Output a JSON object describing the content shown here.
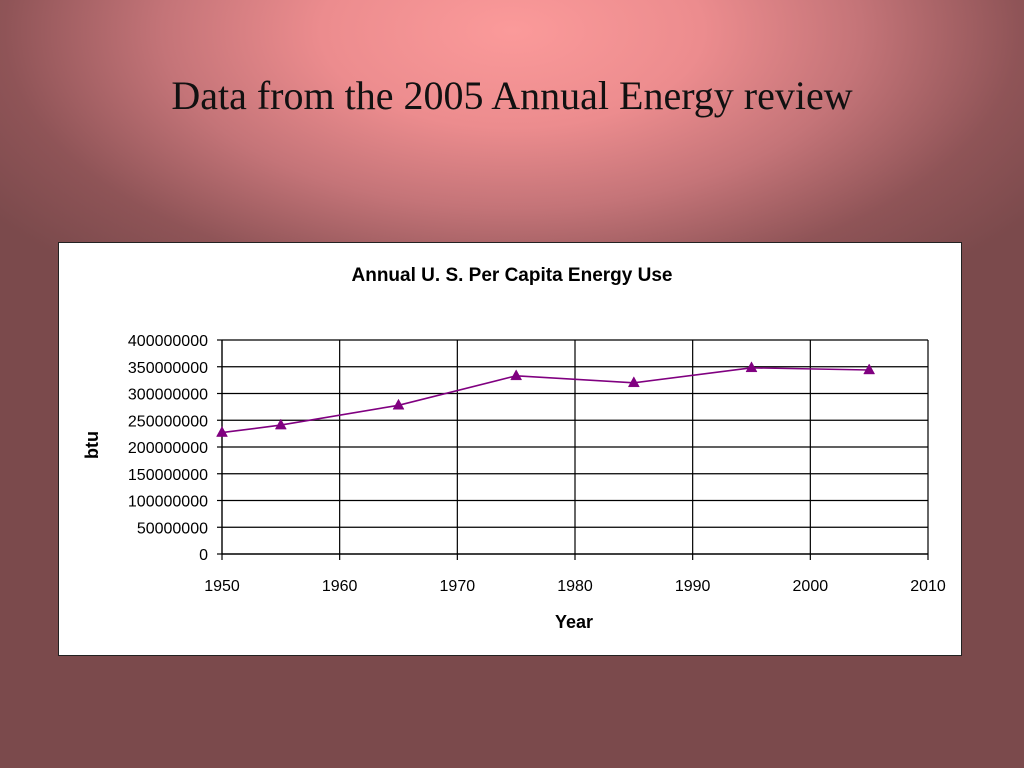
{
  "slide": {
    "title": "Data from the 2005 Annual Energy review"
  },
  "colors": {
    "series": "#800080",
    "grid": "#000000"
  },
  "chart_data": {
    "type": "line",
    "title": "Annual U. S. Per Capita Energy Use",
    "xlabel": "Year",
    "ylabel": "btu",
    "xlim": [
      1950,
      2010
    ],
    "ylim": [
      0,
      400000000
    ],
    "x_ticks": [
      1950,
      1960,
      1970,
      1980,
      1990,
      2000,
      2010
    ],
    "y_ticks": [
      0,
      50000000,
      100000000,
      150000000,
      200000000,
      250000000,
      300000000,
      350000000,
      400000000
    ],
    "grid": true,
    "legend": "none",
    "marker": "triangle",
    "series": [
      {
        "x": [
          1950,
          1955,
          1965,
          1975,
          1985,
          1995,
          2005
        ],
        "y": [
          227000000,
          241000000,
          278000000,
          333000000,
          320000000,
          348000000,
          344000000
        ]
      }
    ]
  }
}
